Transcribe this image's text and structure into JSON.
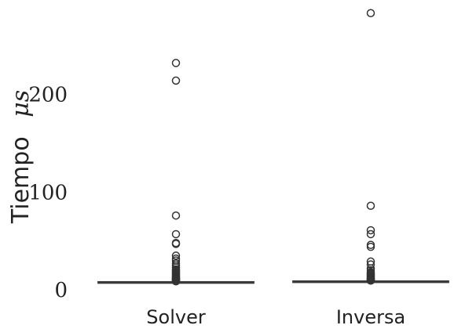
{
  "chart_data": {
    "type": "box",
    "title": "",
    "xlabel": "",
    "ylabel": "Tiempo",
    "ylabel_unit": "μs",
    "ylim": [
      -1.5,
      290
    ],
    "yticks": [
      0,
      100,
      200
    ],
    "ytick_labels": [
      "0",
      "100",
      "200"
    ],
    "grid": false,
    "categories": [
      "Solver",
      "Inversa"
    ],
    "box_color": "#5a5a5a",
    "line_color": "#3a3a3a",
    "series": [
      {
        "category": "Solver",
        "whisker_low": 7.0,
        "q1": 7.4,
        "median": 7.6,
        "q3": 7.8,
        "whisker_high": 8.2,
        "outliers": [
          232,
          214,
          76,
          57,
          48,
          47,
          35,
          32,
          30,
          27,
          25,
          23,
          21,
          20,
          19,
          18,
          17,
          16,
          15,
          14,
          13,
          12.5,
          12,
          11.5,
          11,
          10.5,
          10,
          9.5,
          9,
          8.8
        ]
      },
      {
        "category": "Inversa",
        "whisker_low": 7.6,
        "q1": 8.1,
        "median": 8.4,
        "q3": 8.6,
        "whisker_high": 9.0,
        "outliers": [
          283,
          86,
          61,
          57,
          46,
          44,
          29,
          26,
          22,
          20,
          18,
          17,
          16,
          15,
          14,
          13,
          12,
          11.5,
          11,
          10.5,
          10,
          9.7,
          9.5
        ]
      }
    ]
  }
}
